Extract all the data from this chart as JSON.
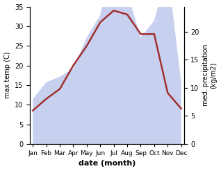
{
  "months": [
    "Jan",
    "Feb",
    "Mar",
    "Apr",
    "May",
    "Jun",
    "Jul",
    "Aug",
    "Sep",
    "Oct",
    "Nov",
    "Dec"
  ],
  "temp": [
    8.5,
    11.5,
    14.0,
    20.0,
    25.0,
    31.0,
    34.0,
    33.0,
    28.0,
    28.0,
    13.0,
    9.0
  ],
  "precip": [
    8.0,
    11.0,
    12.0,
    13.5,
    19.0,
    23.0,
    34.0,
    27.0,
    19.0,
    22.0,
    31.0,
    11.0
  ],
  "temp_color": "#a03030",
  "precip_fill_color": "#c8d0f0",
  "precip_line_color": "#c8d0f0",
  "temp_ylim": [
    0,
    35
  ],
  "precip_ylim": [
    0,
    24.5
  ],
  "xlabel": "date (month)",
  "ylabel_left": "max temp (C)",
  "ylabel_right": "med. precipitation\n(kg/m2)",
  "bg_color": "#ffffff",
  "left_yticks": [
    0,
    5,
    10,
    15,
    20,
    25,
    30,
    35
  ],
  "right_yticks": [
    0,
    5,
    10,
    15,
    20
  ],
  "temp_linewidth": 1.8,
  "figsize": [
    3.18,
    2.47
  ],
  "dpi": 100
}
